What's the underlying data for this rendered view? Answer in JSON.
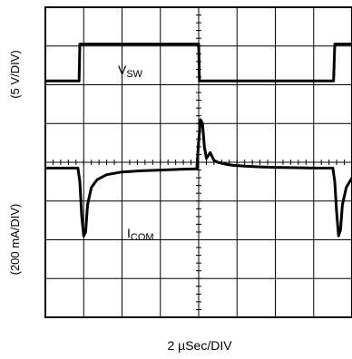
{
  "chart_data": {
    "type": "line",
    "title": "",
    "xlabel": "2 µSec/DIV",
    "ylabel_top": "(5 V/DIV)",
    "ylabel_bottom": "(200 mA/DIV)",
    "x_divisions": 8,
    "y_divisions": 8,
    "x_range_div": [
      0,
      8
    ],
    "y_range_div": [
      0,
      8
    ],
    "grid": true,
    "series": [
      {
        "name": "VSW",
        "label_main": "V",
        "label_sub": "SW",
        "x_div": [
          0,
          0.88,
          0.9,
          4.0,
          4.02,
          7.52,
          7.55,
          8.0
        ],
        "y_div": [
          6.1,
          6.1,
          7.05,
          7.05,
          6.1,
          6.1,
          7.05,
          7.05
        ]
      },
      {
        "name": "ICOM",
        "label_main": "I",
        "label_sub": "COM",
        "x_div": [
          0,
          0.85,
          0.9,
          0.95,
          1.0,
          1.05,
          1.1,
          1.2,
          1.35,
          1.6,
          2.0,
          2.5,
          3.0,
          3.5,
          3.95,
          4.0,
          4.05,
          4.1,
          4.15,
          4.2,
          4.3,
          4.4,
          4.5,
          4.6,
          4.7,
          4.9,
          5.2,
          5.6,
          6.0,
          6.5,
          7.0,
          7.5,
          7.55,
          7.6,
          7.65,
          7.7,
          7.75,
          7.85,
          8.0
        ],
        "y_div": [
          3.85,
          3.85,
          3.5,
          2.6,
          2.1,
          2.2,
          2.9,
          3.35,
          3.55,
          3.68,
          3.75,
          3.78,
          3.8,
          3.82,
          3.83,
          4.55,
          5.1,
          5.0,
          4.4,
          4.1,
          4.25,
          4.05,
          4.0,
          3.98,
          3.95,
          3.92,
          3.9,
          3.88,
          3.87,
          3.86,
          3.85,
          3.85,
          3.5,
          2.7,
          2.1,
          2.25,
          2.9,
          3.35,
          3.6
        ]
      }
    ]
  }
}
